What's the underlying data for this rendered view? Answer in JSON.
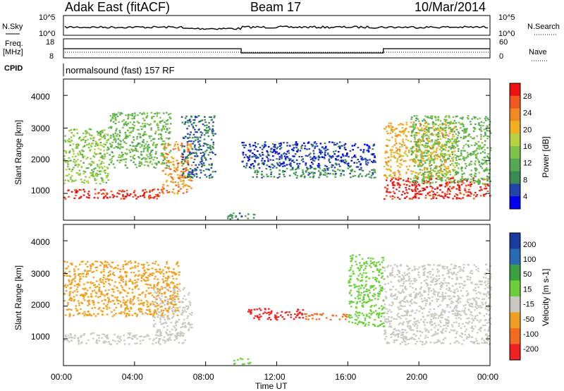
{
  "header": {
    "station": "Adak East (fitACF)",
    "beam": "Beam 17",
    "date": "10/Mar/2014"
  },
  "sky_panel": {
    "left_label": "N.Sky",
    "left_ticks": [
      "10^5",
      "10^0"
    ],
    "right_ticks": [
      "10^5",
      "10^0"
    ],
    "right_label": "N.Search"
  },
  "freq_panel": {
    "left_label_1": "Freq.",
    "left_label_2": "[MHz]",
    "left_ticks": [
      "18",
      "8"
    ],
    "right_ticks": [
      "60",
      "0"
    ],
    "right_label": "Nave",
    "cpid_label": "CPID",
    "program": "normalsound (fast) 157 RF"
  },
  "power_panel": {
    "ylabel": "Slant Range [km]",
    "yticks": [
      "4000",
      "3000",
      "2000",
      "1000"
    ],
    "colorbar_label": "Power [dB]",
    "colorbar_ticks": [
      "28",
      "24",
      "20",
      "16",
      "12",
      "8",
      "4"
    ],
    "colors": [
      "#0000ee",
      "#2244aa",
      "#3a8a55",
      "#55a955",
      "#7ec24a",
      "#b8d140",
      "#f0b020",
      "#f08a20",
      "#f05a20",
      "#ee1111"
    ]
  },
  "velocity_panel": {
    "ylabel": "Slant Range [km]",
    "yticks": [
      "4000",
      "3000",
      "2000",
      "1000"
    ],
    "colorbar_label": "Velocity [m s-1]",
    "colorbar_ticks": [
      "200",
      "100",
      "50",
      "15",
      "-15",
      "-50",
      "-100",
      "-200"
    ],
    "colors": [
      "#1a3aa0",
      "#2a6ab0",
      "#3aa040",
      "#6ccf3a",
      "#c8c8c0",
      "#f0a020",
      "#f06a20",
      "#ee2020"
    ]
  },
  "x_axis": {
    "ticks": [
      "00:00",
      "04:00",
      "08:00",
      "12:00",
      "16:00",
      "20:00",
      "00:00"
    ],
    "label": "Time UT"
  },
  "chart_data": {
    "type": "heatmap",
    "x_range_hours": [
      0,
      24
    ],
    "y_range_km": [
      180,
      4500
    ],
    "frequency_mhz": [
      {
        "from_h": 0,
        "to_h": 10,
        "value": 13
      },
      {
        "from_h": 10,
        "to_h": 18,
        "value": 10.5
      },
      {
        "from_h": 18,
        "to_h": 24,
        "value": 13
      }
    ],
    "power_regions_db": [
      {
        "t0": 0.0,
        "t1": 5.5,
        "r0": 850,
        "r1": 1150,
        "value": 28
      },
      {
        "t0": 5.5,
        "t1": 7.2,
        "r0": 1000,
        "r1": 2600,
        "value": 22
      },
      {
        "t0": 0.0,
        "t1": 2.5,
        "r0": 1300,
        "r1": 3000,
        "value": 14
      },
      {
        "t0": 2.5,
        "t1": 6.0,
        "r0": 1800,
        "r1": 3500,
        "value": 12
      },
      {
        "t0": 6.6,
        "t1": 8.5,
        "r0": 1500,
        "r1": 3400,
        "value": 6
      },
      {
        "t0": 9.2,
        "t1": 10.8,
        "r0": 230,
        "r1": 420,
        "value": 8
      },
      {
        "t0": 10.5,
        "t1": 17.5,
        "r0": 1500,
        "r1": 1800,
        "value": 8
      },
      {
        "t0": 10.0,
        "t1": 17.5,
        "r0": 1800,
        "r1": 2600,
        "value": 4
      },
      {
        "t0": 18.0,
        "t1": 24.0,
        "r0": 850,
        "r1": 1500,
        "value": 28
      },
      {
        "t0": 18.0,
        "t1": 22.0,
        "r0": 1500,
        "r1": 3200,
        "value": 20
      },
      {
        "t0": 19.5,
        "t1": 24.0,
        "r0": 1300,
        "r1": 3400,
        "value": 12
      }
    ],
    "velocity_regions_ms": [
      {
        "t0": 0.0,
        "t1": 6.8,
        "r0": 850,
        "r1": 1200,
        "value": 0
      },
      {
        "t0": 5.0,
        "t1": 7.2,
        "r0": 1100,
        "r1": 2600,
        "value": 0
      },
      {
        "t0": 0.0,
        "t1": 6.5,
        "r0": 1700,
        "r1": 3400,
        "value": -40
      },
      {
        "t0": 9.5,
        "t1": 10.5,
        "r0": 230,
        "r1": 420,
        "value": 30
      },
      {
        "t0": 10.3,
        "t1": 13.5,
        "r0": 1600,
        "r1": 1950,
        "value": -150
      },
      {
        "t0": 13.5,
        "t1": 16.0,
        "r0": 1600,
        "r1": 1800,
        "value": -60
      },
      {
        "t0": 16.0,
        "t1": 18.0,
        "r0": 1400,
        "r1": 3600,
        "value": 30
      },
      {
        "t0": 18.0,
        "t1": 24.0,
        "r0": 850,
        "r1": 1300,
        "value": 0
      },
      {
        "t0": 18.0,
        "t1": 24.0,
        "r0": 1300,
        "r1": 3300,
        "value": -5
      }
    ]
  }
}
